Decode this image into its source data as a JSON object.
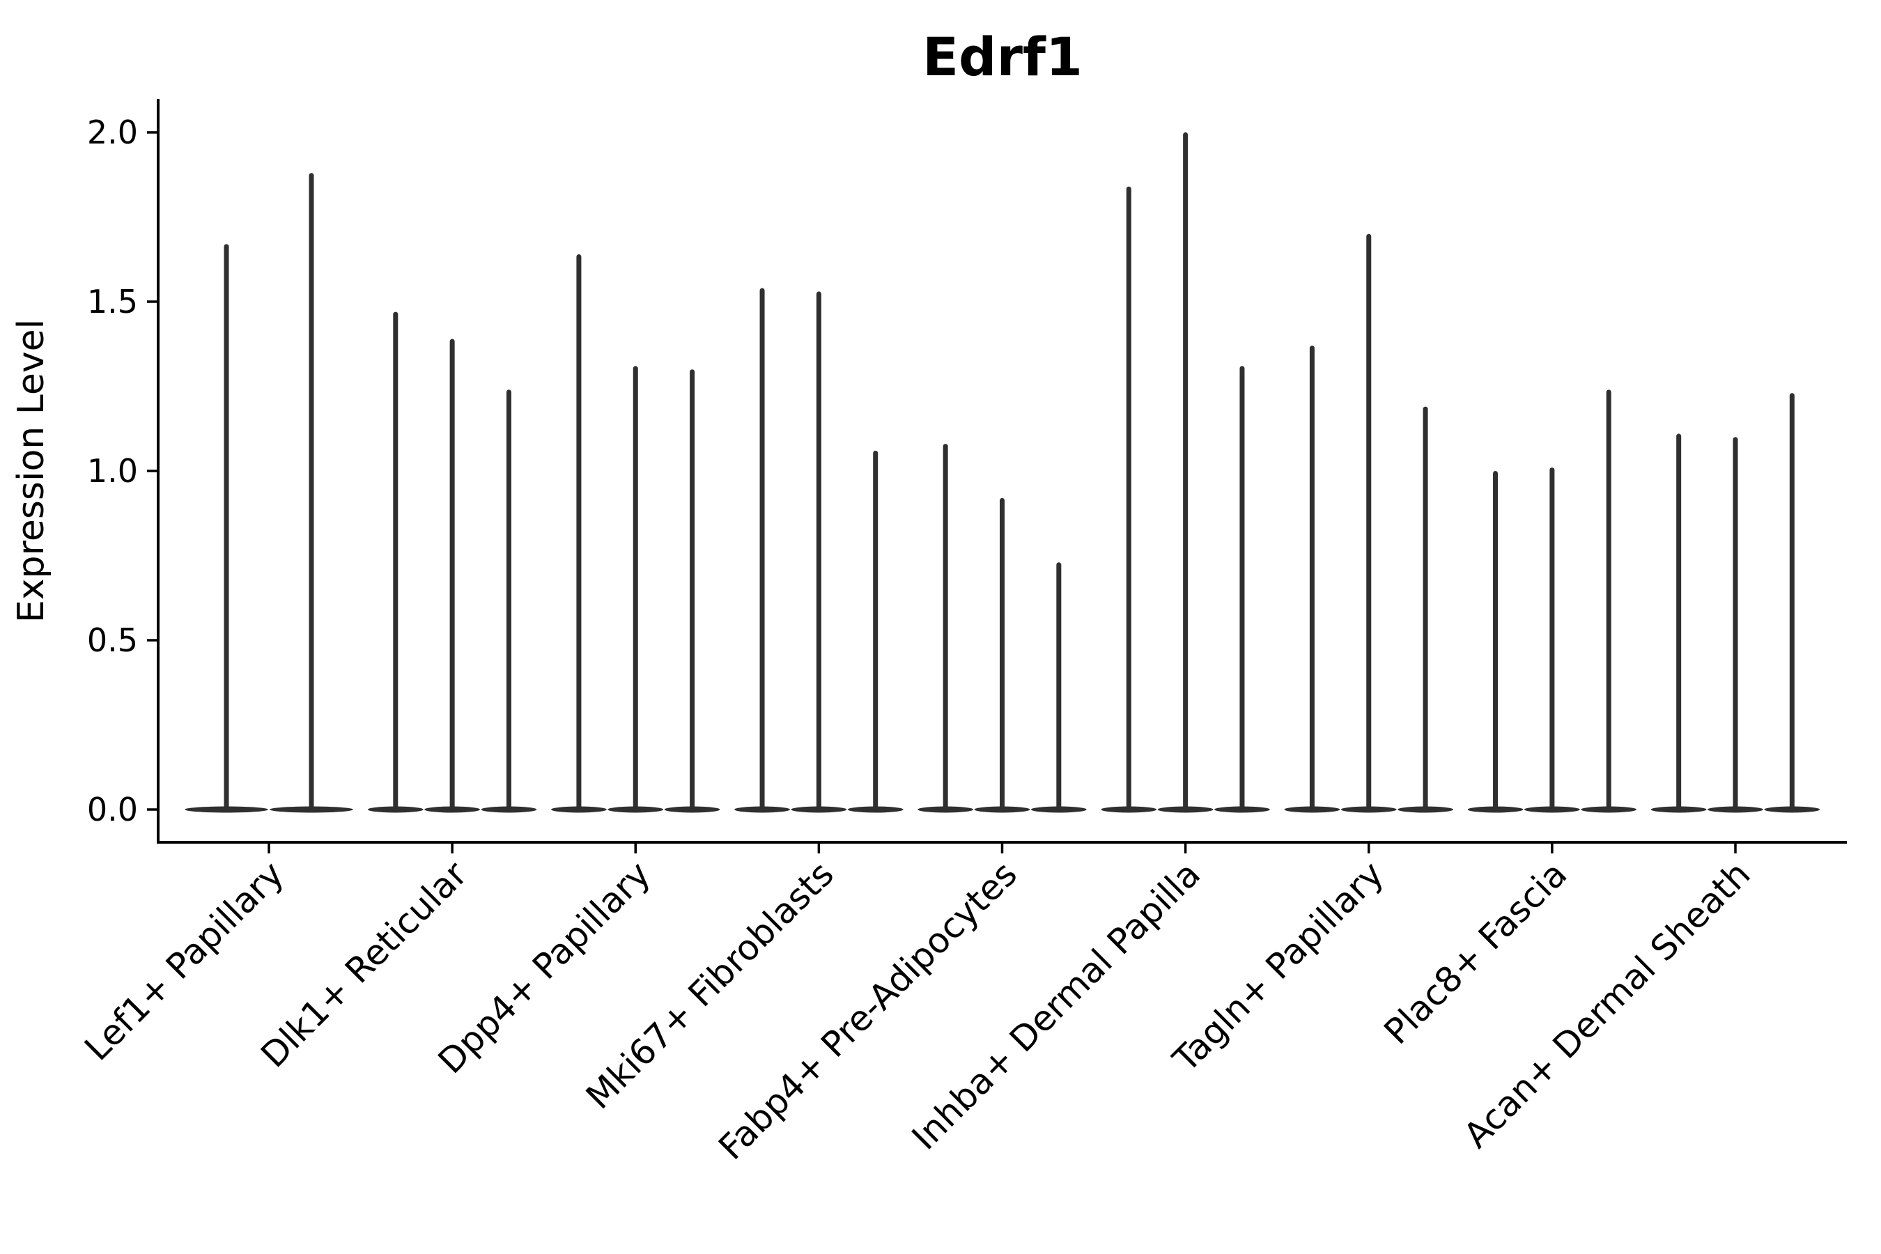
{
  "chart_data": {
    "type": "violin",
    "title": "Edrf1",
    "ylabel": "Expression Level",
    "xlabel": "",
    "ylim": [
      0.0,
      2.0
    ],
    "yticks": [
      0.0,
      0.5,
      1.0,
      1.5,
      2.0
    ],
    "ytick_labels": [
      "0.0",
      "0.5",
      "1.0",
      "1.5",
      "2.0"
    ],
    "grid": false,
    "legend_position": "none",
    "background_color": "#ffffff",
    "axis_color": "#000000",
    "text_color": "#000000",
    "violin_color": "#2f2f2f",
    "categories": [
      "Lef1+ Papillary",
      "Dlk1+ Reticular",
      "Dpp4+ Papillary",
      "Mki67+ Fibroblasts",
      "Fabp4+ Pre-Adipocytes",
      "Inhba+ Dermal Papilla",
      "Tagln+ Papillary",
      "Plac8+ Fascia",
      "Acan+ Dermal Sheath"
    ],
    "violin_baseline": 0.0,
    "groups": [
      {
        "category": "Lef1+ Papillary",
        "violin_max_expression": [
          1.67,
          1.88
        ]
      },
      {
        "category": "Dlk1+ Reticular",
        "violin_max_expression": [
          1.47,
          1.39,
          1.24
        ]
      },
      {
        "category": "Dpp4+ Papillary",
        "violin_max_expression": [
          1.64,
          1.31,
          1.3
        ]
      },
      {
        "category": "Mki67+ Fibroblasts",
        "violin_max_expression": [
          1.54,
          1.53,
          1.06
        ]
      },
      {
        "category": "Fabp4+ Pre-Adipocytes",
        "violin_max_expression": [
          1.08,
          0.92,
          0.73
        ]
      },
      {
        "category": "Inhba+ Dermal Papilla",
        "violin_max_expression": [
          1.84,
          2.0,
          1.31
        ]
      },
      {
        "category": "Tagln+ Papillary",
        "violin_max_expression": [
          1.37,
          1.7,
          1.19
        ]
      },
      {
        "category": "Plac8+ Fascia",
        "violin_max_expression": [
          1.0,
          1.01,
          1.24
        ]
      },
      {
        "category": "Acan+ Dermal Sheath",
        "violin_max_expression": [
          1.11,
          1.1,
          1.23
        ]
      }
    ]
  }
}
